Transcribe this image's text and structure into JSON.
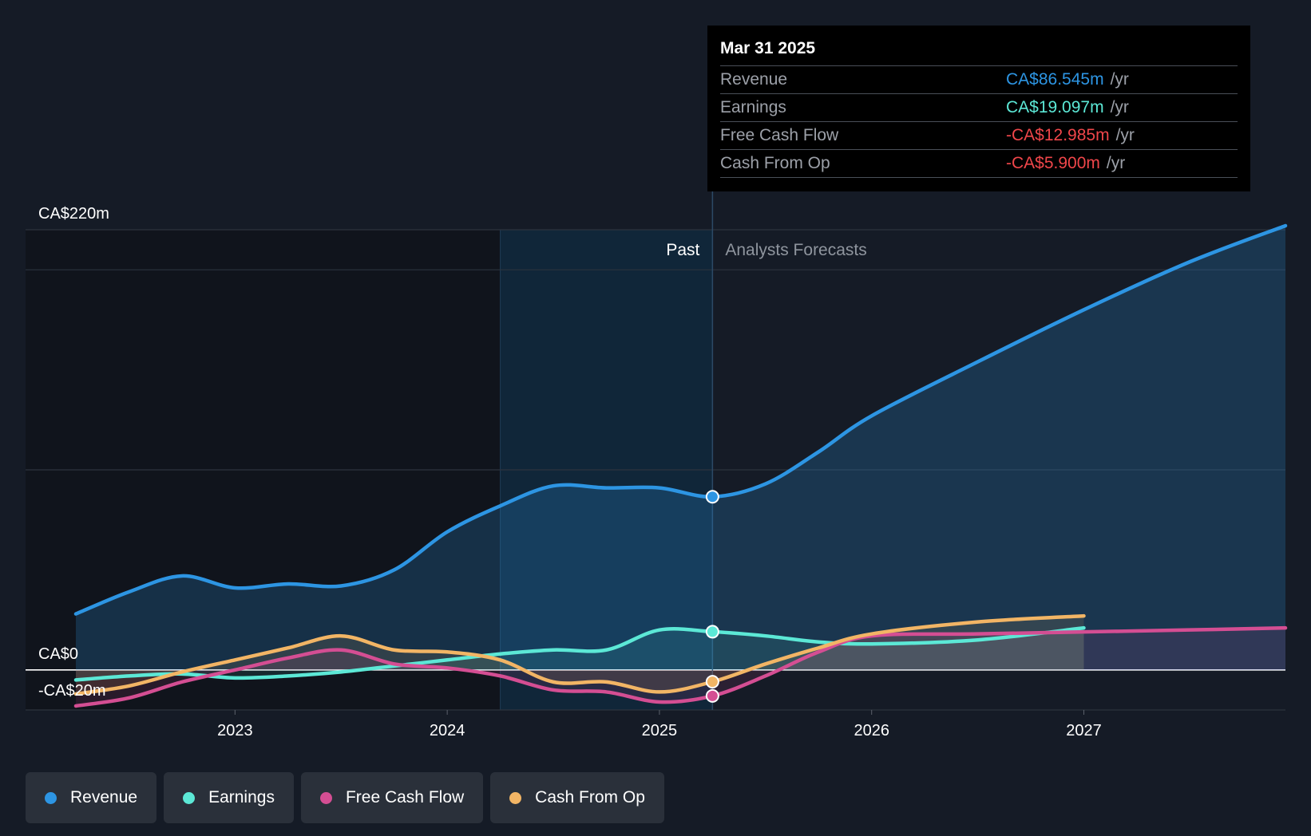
{
  "chart_data": {
    "type": "line",
    "currency": "CA$",
    "y_unit": "m",
    "ylim": [
      -20,
      220
    ],
    "xlim": [
      2022.0,
      2027.95
    ],
    "y_ticks": [
      {
        "value": 220,
        "label": "CA$220m"
      },
      {
        "value": 0,
        "label": "CA$0"
      },
      {
        "value": -20,
        "label": "-CA$20m"
      }
    ],
    "x_ticks": [
      {
        "value": 2023,
        "label": "2023"
      },
      {
        "value": 2024,
        "label": "2024"
      },
      {
        "value": 2025,
        "label": "2025"
      },
      {
        "value": 2026,
        "label": "2026"
      },
      {
        "value": 2027,
        "label": "2027"
      }
    ],
    "past_label": "Past",
    "forecast_label": "Analysts Forecasts",
    "past_end": 2025.25,
    "past_highlight_start": 2024.25,
    "series": [
      {
        "name": "Revenue",
        "color": "#2d95e3",
        "points": [
          [
            2022.25,
            28
          ],
          [
            2022.5,
            39
          ],
          [
            2022.75,
            47
          ],
          [
            2023.0,
            41
          ],
          [
            2023.25,
            43
          ],
          [
            2023.5,
            42
          ],
          [
            2023.75,
            50
          ],
          [
            2024.0,
            69
          ],
          [
            2024.25,
            82
          ],
          [
            2024.5,
            92
          ],
          [
            2024.75,
            91
          ],
          [
            2025.0,
            91
          ],
          [
            2025.25,
            86.545
          ],
          [
            2025.5,
            93
          ],
          [
            2025.75,
            109
          ],
          [
            2026.0,
            127
          ],
          [
            2026.5,
            154
          ],
          [
            2027.0,
            180
          ],
          [
            2027.5,
            204
          ],
          [
            2027.95,
            222
          ]
        ]
      },
      {
        "name": "Earnings",
        "color": "#5ce8d6",
        "points": [
          [
            2022.25,
            -5
          ],
          [
            2022.5,
            -3
          ],
          [
            2022.75,
            -2
          ],
          [
            2023.0,
            -4
          ],
          [
            2023.25,
            -3
          ],
          [
            2023.5,
            -1
          ],
          [
            2023.75,
            2
          ],
          [
            2024.0,
            5
          ],
          [
            2024.25,
            8
          ],
          [
            2024.5,
            10
          ],
          [
            2024.75,
            10
          ],
          [
            2025.0,
            20
          ],
          [
            2025.25,
            19.097
          ],
          [
            2025.5,
            17
          ],
          [
            2025.75,
            14
          ],
          [
            2026.0,
            13
          ],
          [
            2026.5,
            15
          ],
          [
            2027.0,
            21
          ]
        ]
      },
      {
        "name": "Free Cash Flow",
        "color": "#d44e93",
        "points": [
          [
            2022.25,
            -18
          ],
          [
            2022.5,
            -14
          ],
          [
            2022.75,
            -6
          ],
          [
            2023.0,
            0
          ],
          [
            2023.25,
            6
          ],
          [
            2023.5,
            10
          ],
          [
            2023.75,
            3
          ],
          [
            2024.0,
            1
          ],
          [
            2024.25,
            -3
          ],
          [
            2024.5,
            -10
          ],
          [
            2024.75,
            -11
          ],
          [
            2025.0,
            -16
          ],
          [
            2025.25,
            -12.985
          ],
          [
            2025.5,
            -3
          ],
          [
            2025.75,
            9
          ],
          [
            2026.0,
            17
          ],
          [
            2026.5,
            18
          ],
          [
            2027.0,
            19
          ],
          [
            2027.5,
            20
          ],
          [
            2027.95,
            21
          ]
        ]
      },
      {
        "name": "Cash From Op",
        "color": "#f2b565",
        "points": [
          [
            2022.25,
            -12
          ],
          [
            2022.5,
            -8
          ],
          [
            2022.75,
            -1
          ],
          [
            2023.0,
            5
          ],
          [
            2023.25,
            11
          ],
          [
            2023.5,
            17
          ],
          [
            2023.75,
            10
          ],
          [
            2024.0,
            9
          ],
          [
            2024.25,
            5
          ],
          [
            2024.5,
            -6
          ],
          [
            2024.75,
            -6
          ],
          [
            2025.0,
            -11
          ],
          [
            2025.25,
            -5.9
          ],
          [
            2025.5,
            3
          ],
          [
            2025.75,
            11
          ],
          [
            2026.0,
            18
          ],
          [
            2026.5,
            24
          ],
          [
            2027.0,
            27
          ]
        ]
      }
    ]
  },
  "tooltip": {
    "date": "Mar 31 2025",
    "rows": [
      {
        "label": "Revenue",
        "value": "CA$86.545m",
        "unit": "/yr",
        "color": "#2d95e3"
      },
      {
        "label": "Earnings",
        "value": "CA$19.097m",
        "unit": "/yr",
        "color": "#5ce8d6"
      },
      {
        "label": "Free Cash Flow",
        "value": "-CA$12.985m",
        "unit": "/yr",
        "color": "#f0464a"
      },
      {
        "label": "Cash From Op",
        "value": "-CA$5.900m",
        "unit": "/yr",
        "color": "#f0464a"
      }
    ]
  },
  "legend": [
    {
      "label": "Revenue",
      "color": "#2d95e3"
    },
    {
      "label": "Earnings",
      "color": "#5ce8d6"
    },
    {
      "label": "Free Cash Flow",
      "color": "#d44e93"
    },
    {
      "label": "Cash From Op",
      "color": "#f2b565"
    }
  ]
}
